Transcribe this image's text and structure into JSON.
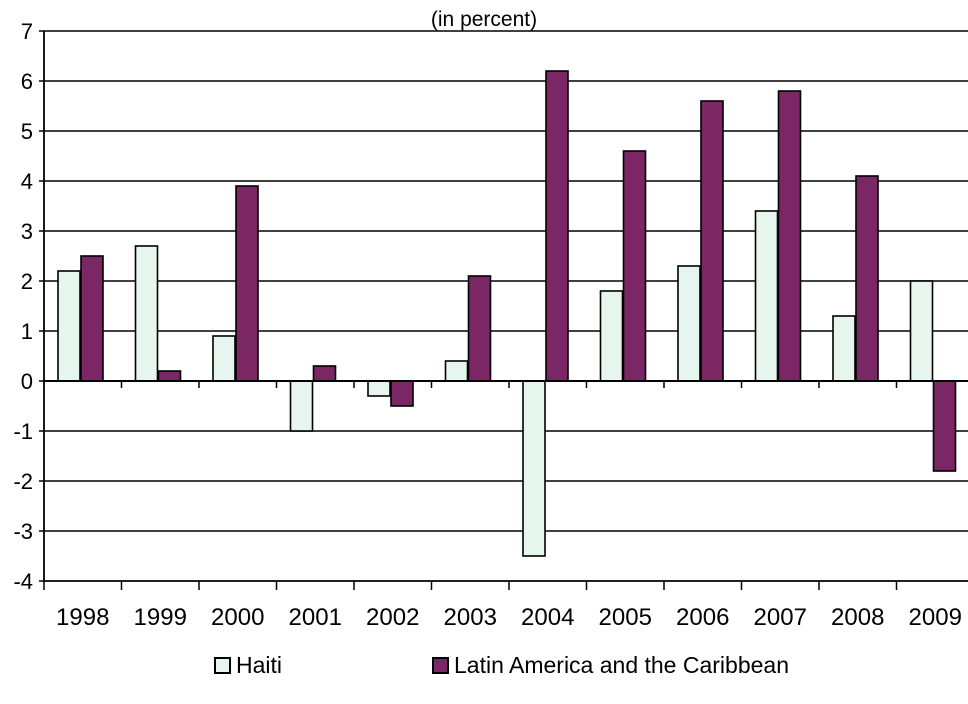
{
  "chart_data": {
    "type": "bar",
    "subtitle": "(in percent)",
    "categories": [
      "1998",
      "1999",
      "2000",
      "2001",
      "2002",
      "2003",
      "2004",
      "2005",
      "2006",
      "2007",
      "2008",
      "2009"
    ],
    "series": [
      {
        "name": "Haiti",
        "color": "#e6f5ee",
        "values": [
          2.2,
          2.7,
          0.9,
          -1.0,
          -0.3,
          0.4,
          -3.5,
          1.8,
          2.3,
          3.4,
          1.3,
          2.0
        ]
      },
      {
        "name": "Latin America and the Caribbean",
        "color": "#7b2665",
        "values": [
          2.5,
          0.2,
          3.9,
          0.3,
          -0.5,
          2.1,
          6.2,
          4.6,
          5.6,
          5.8,
          4.1,
          -1.8
        ]
      }
    ],
    "ylim": [
      -4,
      7
    ],
    "yticks": [
      "7",
      "6",
      "5",
      "4",
      "3",
      "2",
      "1",
      "0",
      "-1",
      "-2",
      "-3",
      "-4"
    ],
    "grid": true,
    "legend_position": "bottom"
  }
}
